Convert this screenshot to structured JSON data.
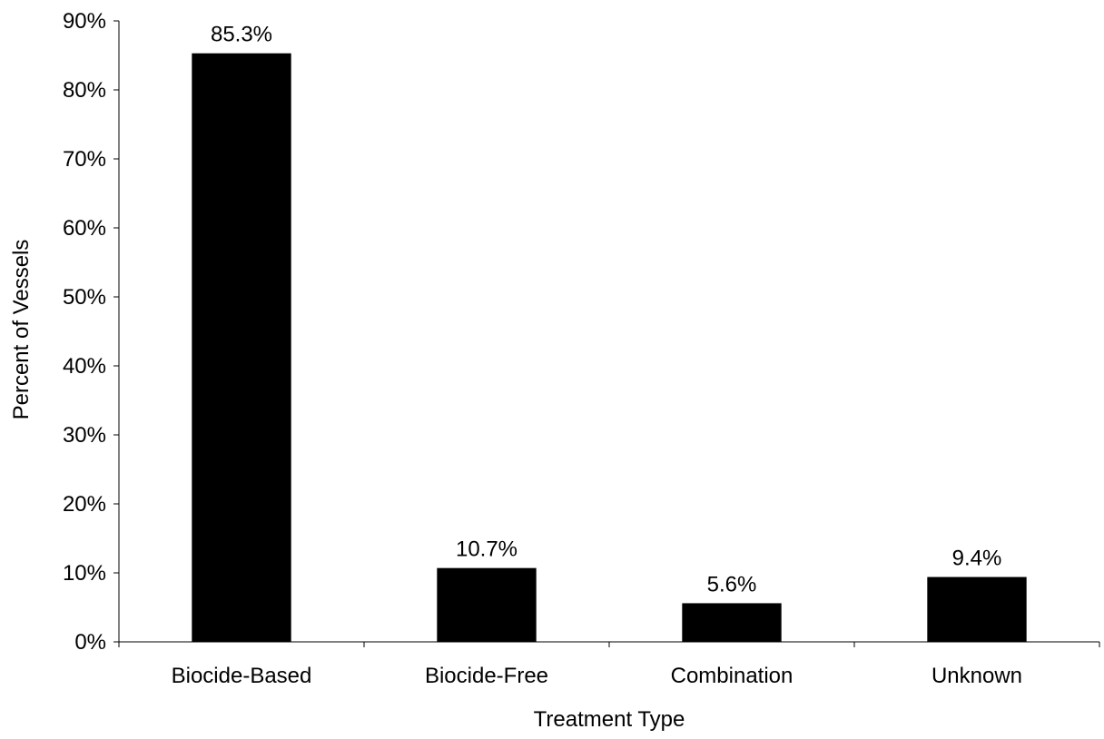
{
  "chart_data": {
    "type": "bar",
    "title": "",
    "xlabel": "Treatment Type",
    "ylabel": "Percent of Vessels",
    "categories": [
      "Biocide-Based",
      "Biocide-Free",
      "Combination",
      "Unknown"
    ],
    "values": [
      85.3,
      10.7,
      5.6,
      9.4
    ],
    "data_labels": [
      "85.3%",
      "10.7%",
      "5.6%",
      "9.4%"
    ],
    "ylim": [
      0,
      90
    ],
    "yticks": [
      0,
      10,
      20,
      30,
      40,
      50,
      60,
      70,
      80,
      90
    ],
    "ytick_labels": [
      "0%",
      "10%",
      "20%",
      "30%",
      "40%",
      "50%",
      "60%",
      "70%",
      "80%",
      "90%"
    ],
    "grid": false,
    "legend": "none",
    "bar_color": "#000000"
  }
}
